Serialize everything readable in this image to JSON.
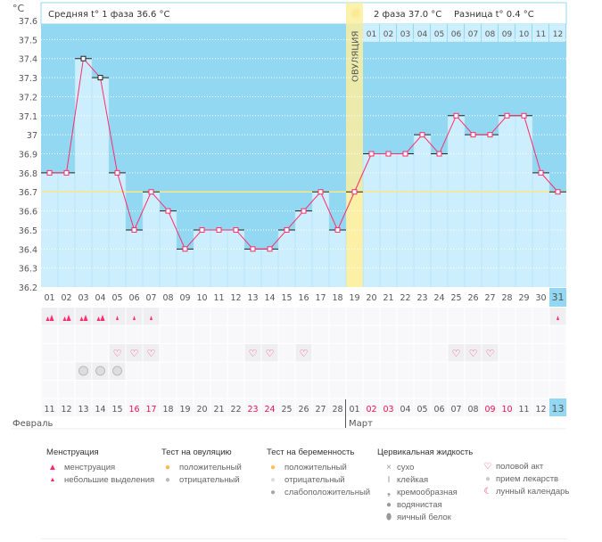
{
  "colors": {
    "sky": "#92d8f2",
    "bar": "#cdeefc",
    "line": "#ff2a6a",
    "cover": "#ffe680",
    "ovul": "#fcef9f",
    "red": "#e8134f",
    "today": "#92d8f2"
  },
  "header": {
    "unit": "°C",
    "phase1": "Средняя t° 1 фаза",
    "phase1_value": "36.6 °C",
    "phase2": "2 фаза",
    "phase2_value": "37.0 °C",
    "diff": "Разница t°",
    "diff_value": "0.4 °C",
    "ovulation": "ОВУЛЯЦИЯ"
  },
  "chart_data": {
    "type": "bar",
    "title": "",
    "ylabel": "°C",
    "ylim": [
      36.2,
      37.7
    ],
    "yticks": [
      "37.6",
      "37.5",
      "37.4",
      "37.3",
      "37.2",
      "37.1",
      "37",
      "36.9",
      "36.8",
      "36.7",
      "36.6",
      "36.5",
      "36.4",
      "36.3",
      "36.2"
    ],
    "cycle_days": [
      "01",
      "02",
      "03",
      "04",
      "05",
      "06",
      "07",
      "08",
      "09",
      "10",
      "11",
      "12",
      "13",
      "14",
      "15",
      "16",
      "17",
      "18",
      "19",
      "20",
      "21",
      "22",
      "23",
      "24",
      "25",
      "26",
      "27",
      "28",
      "29",
      "30",
      "31"
    ],
    "values": [
      36.8,
      36.8,
      37.4,
      37.3,
      36.8,
      36.5,
      36.7,
      36.6,
      36.4,
      36.5,
      36.5,
      36.5,
      36.4,
      36.4,
      36.5,
      36.6,
      36.7,
      36.5,
      36.7,
      36.9,
      36.9,
      36.9,
      37.0,
      36.9,
      37.1,
      37.0,
      37.0,
      37.1,
      37.1,
      36.8,
      36.7
    ],
    "coverline": 36.7,
    "ovulation_day": 19,
    "next_cycle_dates": [
      "01",
      "02",
      "03",
      "04",
      "05",
      "06",
      "07",
      "08",
      "09",
      "10",
      "11",
      "12"
    ]
  },
  "calendar": {
    "dates": [
      "11",
      "12",
      "13",
      "14",
      "15",
      "16",
      "17",
      "18",
      "19",
      "20",
      "21",
      "22",
      "23",
      "24",
      "25",
      "26",
      "27",
      "28",
      "01",
      "02",
      "03",
      "04",
      "05",
      "06",
      "07",
      "08",
      "09",
      "10",
      "11",
      "12",
      "13"
    ],
    "weekend_idx": [
      5,
      6,
      12,
      13,
      19,
      20,
      26,
      27
    ],
    "months": [
      "Февраль",
      "Март"
    ],
    "menstruation": [
      "heavy",
      "heavy",
      "heavy",
      "heavy",
      "light",
      "light",
      "light",
      "",
      "",
      "",
      "",
      "",
      "",
      "",
      "",
      "",
      "",
      "",
      "",
      "",
      "",
      "",
      "",
      "",
      "",
      "",
      "",
      "",
      "",
      "",
      "light"
    ],
    "intercourse_days": [
      5,
      6,
      7,
      13,
      14,
      16,
      25,
      26,
      27
    ],
    "medication_days": [
      3,
      4,
      5
    ]
  },
  "legend": {
    "menstruation": {
      "title": "Менструация",
      "items": [
        "менструация",
        "небольшие выделения"
      ]
    },
    "ovulation_test": {
      "title": "Тест на овуляцию",
      "items": [
        "положительный",
        "отрицательный"
      ]
    },
    "pregnancy_test": {
      "title": "Тест на беременность",
      "items": [
        "положительный",
        "отрицательный",
        "слабоположительный"
      ]
    },
    "cervical": {
      "title": "Цервикальная жидкость",
      "items": [
        "сухо",
        "клейкая",
        "кремообразная",
        "водянистая",
        "яичный белок"
      ]
    },
    "other": {
      "items": [
        "половой акт",
        "прием лекарств",
        "лунный календарь"
      ]
    }
  }
}
